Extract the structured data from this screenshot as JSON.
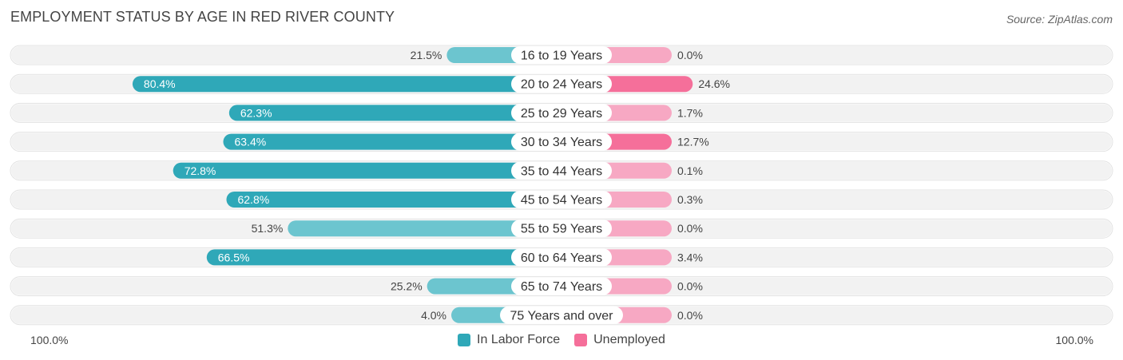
{
  "header": {
    "title": "EMPLOYMENT STATUS BY AGE IN RED RIVER COUNTY",
    "source": "Source: ZipAtlas.com"
  },
  "colors": {
    "labor_dark": "#2fa8b8",
    "labor_light": "#6cc5cf",
    "unemployed_dark": "#f56f9a",
    "unemployed_light": "#f7a8c3",
    "row_bg": "#f2f2f2"
  },
  "chart_data": {
    "type": "bar",
    "orientation": "horizontal-diverging",
    "title": "EMPLOYMENT STATUS BY AGE IN RED RIVER COUNTY",
    "categories": [
      "16 to 19 Years",
      "20 to 24 Years",
      "25 to 29 Years",
      "30 to 34 Years",
      "35 to 44 Years",
      "45 to 54 Years",
      "55 to 59 Years",
      "60 to 64 Years",
      "65 to 74 Years",
      "75 Years and over"
    ],
    "series": [
      {
        "name": "In Labor Force",
        "values": [
          21.5,
          80.4,
          62.3,
          63.4,
          72.8,
          62.8,
          51.3,
          66.5,
          25.2,
          4.0
        ],
        "labels": [
          "21.5%",
          "80.4%",
          "62.3%",
          "63.4%",
          "72.8%",
          "62.8%",
          "51.3%",
          "66.5%",
          "25.2%",
          "4.0%"
        ]
      },
      {
        "name": "Unemployed",
        "values": [
          0.0,
          24.6,
          1.7,
          12.7,
          0.1,
          0.3,
          0.0,
          3.4,
          0.0,
          0.0
        ],
        "labels": [
          "0.0%",
          "24.6%",
          "1.7%",
          "12.7%",
          "0.1%",
          "0.3%",
          "0.0%",
          "3.4%",
          "0.0%",
          "0.0%"
        ]
      }
    ],
    "xlim": [
      -100,
      100
    ],
    "axis_left_label": "100.0%",
    "axis_right_label": "100.0%",
    "legend": [
      "In Labor Force",
      "Unemployed"
    ],
    "legend_position": "bottom-center"
  }
}
